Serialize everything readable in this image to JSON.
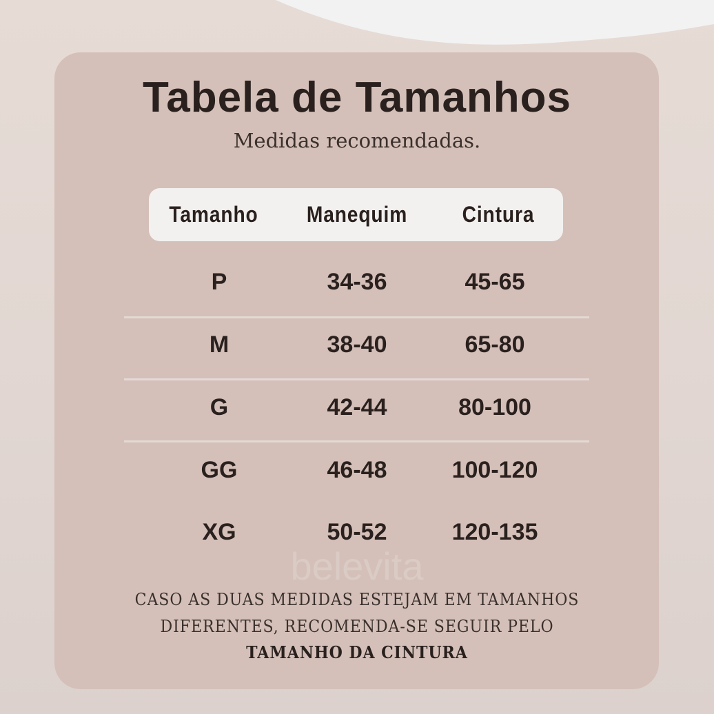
{
  "colors": {
    "background": "#e4d9d4",
    "card": "#d4c0b9",
    "header_pill": "#f2f1f0",
    "text": "#2a211e",
    "divider": "#e4d9d5"
  },
  "title": "Tabela de Tamanhos",
  "subtitle": "Medidas recomendadas.",
  "table": {
    "headers": [
      "Tamanho",
      "Manequim",
      "Cintura"
    ],
    "rows": [
      [
        "P",
        "34-36",
        "45-65"
      ],
      [
        "M",
        "38-40",
        "65-80"
      ],
      [
        "G",
        "42-44",
        "80-100"
      ],
      [
        "GG",
        "46-48",
        "100-120"
      ],
      [
        "XG",
        "50-52",
        "120-135"
      ]
    ]
  },
  "watermark": "belevita",
  "note": {
    "line1": "CASO AS DUAS MEDIDAS ESTEJAM EM TAMANHOS",
    "line2": "DIFERENTES, RECOMENDA-SE SEGUIR PELO",
    "line3": "TAMANHO DA CINTURA"
  }
}
